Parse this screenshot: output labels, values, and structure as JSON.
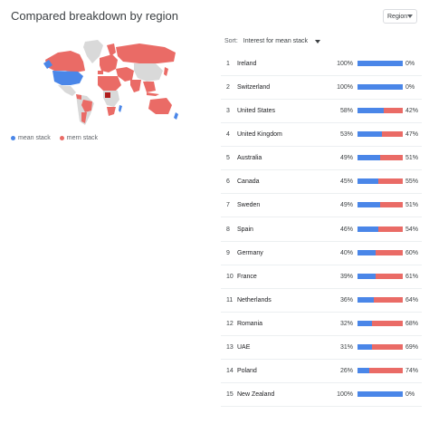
{
  "title": "Compared breakdown by region",
  "region_select": {
    "value": "Region"
  },
  "legend": {
    "items": [
      {
        "label": "mean stack",
        "color": "#4a86e8"
      },
      {
        "label": "mern stack",
        "color": "#ea6b66"
      }
    ]
  },
  "sort": {
    "label": "Sort:",
    "value": "Interest for mean stack"
  },
  "colors": {
    "mean": "#4a86e8",
    "mern": "#ea6b66",
    "no_data": "#d9d9d9"
  },
  "rows": [
    {
      "rank": "1",
      "country": "Ireland",
      "left_pct": "100%",
      "right_pct": "0%",
      "mean_share": 1.0
    },
    {
      "rank": "2",
      "country": "Switzerland",
      "left_pct": "100%",
      "right_pct": "0%",
      "mean_share": 1.0
    },
    {
      "rank": "3",
      "country": "United States",
      "left_pct": "58%",
      "right_pct": "42%",
      "mean_share": 0.58
    },
    {
      "rank": "4",
      "country": "United Kingdom",
      "left_pct": "53%",
      "right_pct": "47%",
      "mean_share": 0.53
    },
    {
      "rank": "5",
      "country": "Australia",
      "left_pct": "49%",
      "right_pct": "51%",
      "mean_share": 0.49
    },
    {
      "rank": "6",
      "country": "Canada",
      "left_pct": "45%",
      "right_pct": "55%",
      "mean_share": 0.45
    },
    {
      "rank": "7",
      "country": "Sweden",
      "left_pct": "49%",
      "right_pct": "51%",
      "mean_share": 0.49
    },
    {
      "rank": "8",
      "country": "Spain",
      "left_pct": "46%",
      "right_pct": "54%",
      "mean_share": 0.46
    },
    {
      "rank": "9",
      "country": "Germany",
      "left_pct": "40%",
      "right_pct": "60%",
      "mean_share": 0.4
    },
    {
      "rank": "10",
      "country": "France",
      "left_pct": "39%",
      "right_pct": "61%",
      "mean_share": 0.39
    },
    {
      "rank": "11",
      "country": "Netherlands",
      "left_pct": "36%",
      "right_pct": "64%",
      "mean_share": 0.36
    },
    {
      "rank": "12",
      "country": "Romania",
      "left_pct": "32%",
      "right_pct": "68%",
      "mean_share": 0.32
    },
    {
      "rank": "13",
      "country": "UAE",
      "left_pct": "31%",
      "right_pct": "69%",
      "mean_share": 0.31
    },
    {
      "rank": "14",
      "country": "Poland",
      "left_pct": "26%",
      "right_pct": "74%",
      "mean_share": 0.26
    },
    {
      "rank": "15",
      "country": "New Zealand",
      "left_pct": "100%",
      "right_pct": "0%",
      "mean_share": 1.0
    }
  ]
}
